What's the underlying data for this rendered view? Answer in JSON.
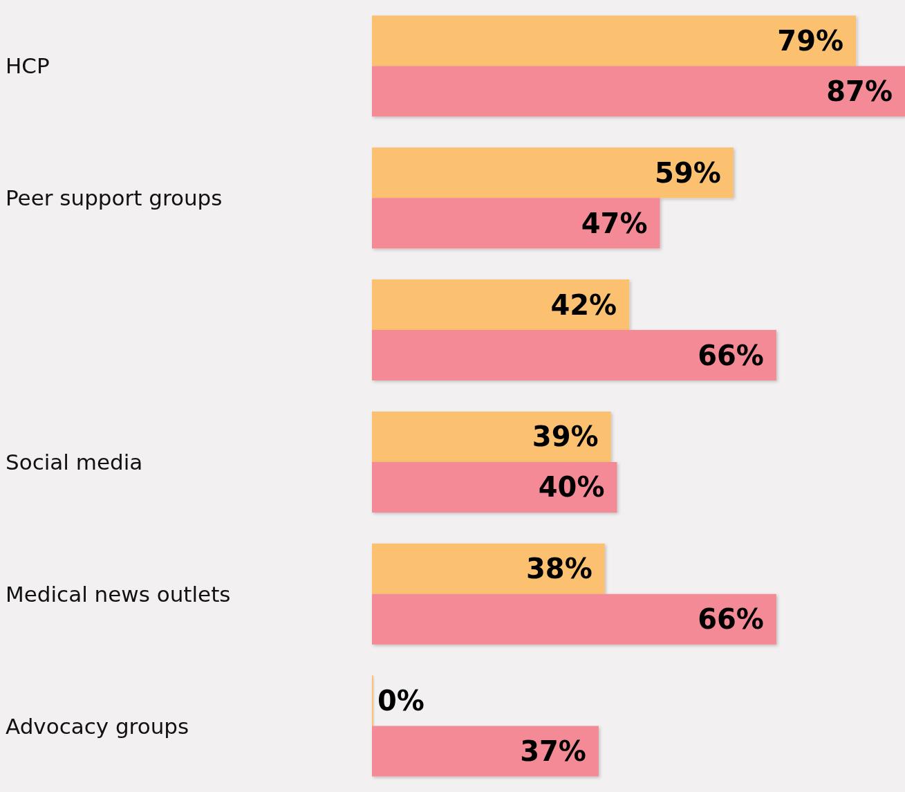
{
  "chart_data": {
    "type": "bar",
    "orientation": "horizontal",
    "categories": [
      "HCP",
      "Peer support groups",
      null,
      "Social media",
      "Medical news outlets",
      "Advocacy groups"
    ],
    "series": [
      {
        "color": "#fbc16f",
        "values": [
          79,
          59,
          42,
          39,
          38,
          0
        ],
        "value_labels": [
          "79%",
          "59%",
          "42%",
          "39%",
          "38%",
          "0%"
        ]
      },
      {
        "color": "#f48a96",
        "values": [
          87,
          47,
          66,
          40,
          66,
          37
        ],
        "value_labels": [
          "87%",
          "47%",
          "66%",
          "40%",
          "66%",
          "37%"
        ]
      }
    ],
    "tick_labels": "y"
  }
}
